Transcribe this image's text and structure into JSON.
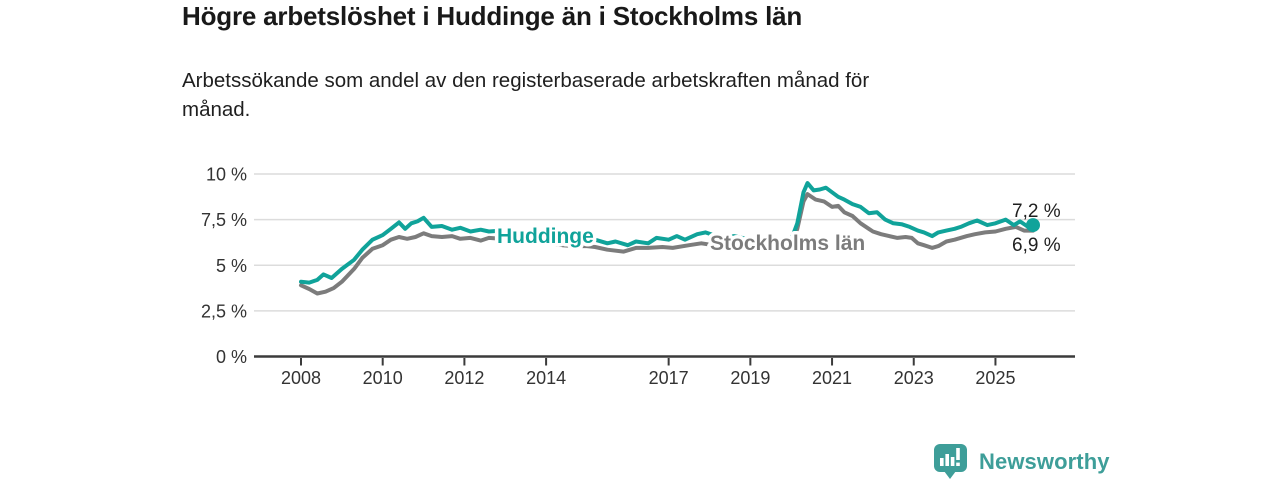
{
  "title": "Högre arbetslöshet i Huddinge än i Stockholms län",
  "subtitle": "Arbetssökande som andel av den registerbaserade arbetskraften månad för månad.",
  "branding": {
    "logo_text": "Newsworthy",
    "logo_icon": "bar-chart-speech-bubble-icon",
    "logo_color": "#3E9E99"
  },
  "colors": {
    "huddinge": "#10A39A",
    "stockholms_lan": "#7C7C7C",
    "gridline": "#DCDCDC",
    "axis": "#3B3B3B",
    "axis_text": "#333333",
    "end_label_text": "#1F1F1F"
  },
  "chart_data": {
    "type": "line",
    "title": "Högre arbetslöshet i Huddinge än i Stockholms län",
    "subtitle": "Arbetssökande som andel av den registerbaserade arbetskraften månad för månad.",
    "unit": "%",
    "xlabel": "",
    "ylabel": "",
    "ylim": [
      0,
      10
    ],
    "grid": "horizontal",
    "legend_position": "inline-labels",
    "yticks": [
      {
        "value": 0,
        "label": "0 %"
      },
      {
        "value": 2.5,
        "label": "2,5 %"
      },
      {
        "value": 5,
        "label": "5 %"
      },
      {
        "value": 7.5,
        "label": "7,5 %"
      },
      {
        "value": 10,
        "label": "10 %"
      }
    ],
    "xticks": [
      {
        "year": 2008,
        "label": "2008"
      },
      {
        "year": 2010,
        "label": "2010"
      },
      {
        "year": 2012,
        "label": "2012"
      },
      {
        "year": 2014,
        "label": "2014"
      },
      {
        "year": 2017,
        "label": "2017"
      },
      {
        "year": 2019,
        "label": "2019"
      },
      {
        "year": 2021,
        "label": "2021"
      },
      {
        "year": 2023,
        "label": "2023"
      },
      {
        "year": 2025,
        "label": "2025"
      }
    ],
    "annotations": [
      {
        "series": "Huddinge",
        "label": "7,2 %"
      },
      {
        "series": "Stockholms län",
        "label": "6,9 %"
      }
    ],
    "series": [
      {
        "name": "Stockholms län",
        "color": "#7C7C7C",
        "end_dot": false,
        "points": [
          [
            2008.0,
            3.9
          ],
          [
            2008.2,
            3.7
          ],
          [
            2008.4,
            3.45
          ],
          [
            2008.6,
            3.55
          ],
          [
            2008.8,
            3.75
          ],
          [
            2009.0,
            4.1
          ],
          [
            2009.3,
            4.8
          ],
          [
            2009.5,
            5.4
          ],
          [
            2009.75,
            5.9
          ],
          [
            2010.0,
            6.1
          ],
          [
            2010.2,
            6.4
          ],
          [
            2010.4,
            6.55
          ],
          [
            2010.6,
            6.45
          ],
          [
            2010.8,
            6.55
          ],
          [
            2011.0,
            6.75
          ],
          [
            2011.2,
            6.6
          ],
          [
            2011.45,
            6.55
          ],
          [
            2011.7,
            6.6
          ],
          [
            2011.9,
            6.45
          ],
          [
            2012.15,
            6.5
          ],
          [
            2012.4,
            6.35
          ],
          [
            2012.6,
            6.5
          ],
          [
            2012.9,
            6.45
          ],
          [
            2013.2,
            6.4
          ],
          [
            2013.5,
            6.3
          ],
          [
            2013.8,
            6.25
          ],
          [
            2014.1,
            6.2
          ],
          [
            2014.4,
            6.1
          ],
          [
            2014.7,
            6.05
          ],
          [
            2015.0,
            6.05
          ],
          [
            2015.2,
            6.0
          ],
          [
            2015.5,
            5.85
          ],
          [
            2015.9,
            5.75
          ],
          [
            2016.2,
            5.95
          ],
          [
            2016.5,
            5.95
          ],
          [
            2016.85,
            6.0
          ],
          [
            2017.1,
            5.95
          ],
          [
            2017.5,
            6.1
          ],
          [
            2017.8,
            6.2
          ],
          [
            2018.1,
            6.1
          ],
          [
            2018.4,
            6.1
          ],
          [
            2018.7,
            6.2
          ],
          [
            2019.0,
            6.1
          ],
          [
            2019.3,
            6.15
          ],
          [
            2019.6,
            6.2
          ],
          [
            2019.85,
            6.1
          ],
          [
            2020.0,
            6.2
          ],
          [
            2020.15,
            7.0
          ],
          [
            2020.3,
            8.5
          ],
          [
            2020.4,
            8.9
          ],
          [
            2020.6,
            8.6
          ],
          [
            2020.8,
            8.5
          ],
          [
            2021.0,
            8.2
          ],
          [
            2021.15,
            8.25
          ],
          [
            2021.3,
            7.9
          ],
          [
            2021.5,
            7.7
          ],
          [
            2021.7,
            7.3
          ],
          [
            2021.9,
            7.0
          ],
          [
            2022.0,
            6.85
          ],
          [
            2022.2,
            6.7
          ],
          [
            2022.4,
            6.6
          ],
          [
            2022.6,
            6.5
          ],
          [
            2022.8,
            6.55
          ],
          [
            2022.95,
            6.5
          ],
          [
            2023.1,
            6.2
          ],
          [
            2023.25,
            6.1
          ],
          [
            2023.45,
            5.95
          ],
          [
            2023.6,
            6.05
          ],
          [
            2023.8,
            6.3
          ],
          [
            2024.0,
            6.4
          ],
          [
            2024.3,
            6.6
          ],
          [
            2024.5,
            6.7
          ],
          [
            2024.75,
            6.8
          ],
          [
            2025.0,
            6.85
          ],
          [
            2025.25,
            7.0
          ],
          [
            2025.5,
            7.1
          ],
          [
            2025.7,
            6.9
          ],
          [
            2025.92,
            6.9
          ]
        ]
      },
      {
        "name": "Huddinge",
        "color": "#10A39A",
        "end_dot": true,
        "points": [
          [
            2008.0,
            4.1
          ],
          [
            2008.2,
            4.05
          ],
          [
            2008.4,
            4.2
          ],
          [
            2008.55,
            4.5
          ],
          [
            2008.75,
            4.3
          ],
          [
            2009.0,
            4.8
          ],
          [
            2009.3,
            5.3
          ],
          [
            2009.5,
            5.85
          ],
          [
            2009.75,
            6.4
          ],
          [
            2010.0,
            6.65
          ],
          [
            2010.2,
            7.0
          ],
          [
            2010.4,
            7.35
          ],
          [
            2010.55,
            7.0
          ],
          [
            2010.7,
            7.3
          ],
          [
            2010.85,
            7.4
          ],
          [
            2011.0,
            7.6
          ],
          [
            2011.2,
            7.1
          ],
          [
            2011.45,
            7.15
          ],
          [
            2011.7,
            6.95
          ],
          [
            2011.9,
            7.05
          ],
          [
            2012.15,
            6.85
          ],
          [
            2012.4,
            6.95
          ],
          [
            2012.6,
            6.85
          ],
          [
            2012.9,
            6.9
          ],
          [
            2013.2,
            6.8
          ],
          [
            2013.5,
            6.7
          ],
          [
            2013.8,
            6.65
          ],
          [
            2014.1,
            6.6
          ],
          [
            2014.4,
            6.5
          ],
          [
            2014.7,
            6.45
          ],
          [
            2015.0,
            6.45
          ],
          [
            2015.2,
            6.4
          ],
          [
            2015.5,
            6.2
          ],
          [
            2015.7,
            6.3
          ],
          [
            2016.0,
            6.1
          ],
          [
            2016.2,
            6.3
          ],
          [
            2016.5,
            6.2
          ],
          [
            2016.7,
            6.5
          ],
          [
            2017.0,
            6.4
          ],
          [
            2017.2,
            6.6
          ],
          [
            2017.4,
            6.4
          ],
          [
            2017.7,
            6.7
          ],
          [
            2017.9,
            6.8
          ],
          [
            2018.1,
            6.65
          ],
          [
            2018.4,
            6.5
          ],
          [
            2018.6,
            6.6
          ],
          [
            2018.9,
            6.45
          ],
          [
            2019.2,
            6.4
          ],
          [
            2019.5,
            6.45
          ],
          [
            2019.8,
            6.3
          ],
          [
            2020.0,
            6.4
          ],
          [
            2020.15,
            7.3
          ],
          [
            2020.3,
            9.0
          ],
          [
            2020.4,
            9.5
          ],
          [
            2020.55,
            9.1
          ],
          [
            2020.7,
            9.15
          ],
          [
            2020.85,
            9.25
          ],
          [
            2021.0,
            9.0
          ],
          [
            2021.15,
            8.75
          ],
          [
            2021.3,
            8.6
          ],
          [
            2021.5,
            8.35
          ],
          [
            2021.7,
            8.2
          ],
          [
            2021.9,
            7.85
          ],
          [
            2022.1,
            7.9
          ],
          [
            2022.3,
            7.5
          ],
          [
            2022.5,
            7.3
          ],
          [
            2022.7,
            7.25
          ],
          [
            2022.9,
            7.1
          ],
          [
            2023.1,
            6.9
          ],
          [
            2023.25,
            6.8
          ],
          [
            2023.45,
            6.6
          ],
          [
            2023.6,
            6.8
          ],
          [
            2023.8,
            6.9
          ],
          [
            2024.0,
            7.0
          ],
          [
            2024.15,
            7.1
          ],
          [
            2024.35,
            7.3
          ],
          [
            2024.55,
            7.45
          ],
          [
            2024.8,
            7.2
          ],
          [
            2025.0,
            7.3
          ],
          [
            2025.25,
            7.5
          ],
          [
            2025.45,
            7.2
          ],
          [
            2025.6,
            7.4
          ],
          [
            2025.8,
            7.1
          ],
          [
            2025.92,
            7.2
          ]
        ]
      }
    ]
  }
}
